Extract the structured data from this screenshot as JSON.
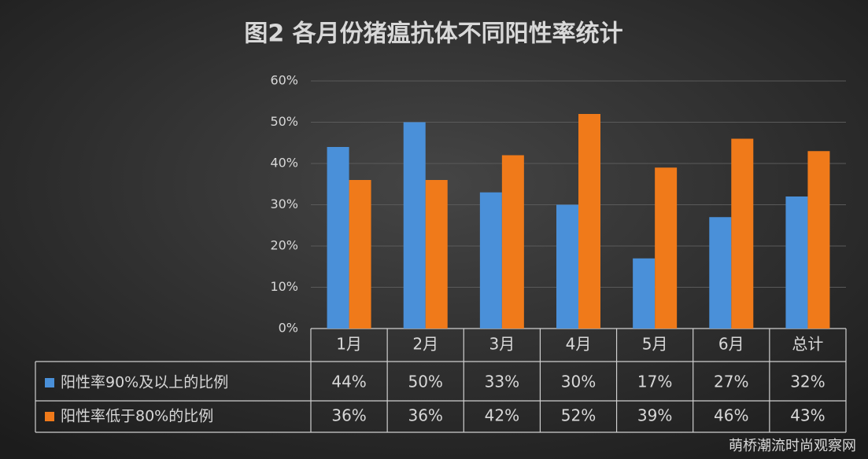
{
  "chart_data": {
    "type": "bar",
    "title": "图2 各月份猪瘟抗体不同阳性率统计",
    "categories": [
      "1月",
      "2月",
      "3月",
      "4月",
      "5月",
      "6月",
      "总计"
    ],
    "series": [
      {
        "name": "阳性率90%及以上的比例",
        "color": "#4a90d9",
        "values": [
          44,
          50,
          33,
          30,
          17,
          27,
          32
        ],
        "value_labels": [
          "44%",
          "50%",
          "33%",
          "30%",
          "17%",
          "27%",
          "32%"
        ]
      },
      {
        "name": "阳性率低于80%的比例",
        "color": "#f07a1a",
        "values": [
          36,
          36,
          42,
          52,
          39,
          46,
          43
        ],
        "value_labels": [
          "36%",
          "36%",
          "42%",
          "52%",
          "39%",
          "46%",
          "43%"
        ]
      }
    ],
    "ylim": [
      0,
      60
    ],
    "yticks": [
      {
        "value": 0,
        "label": "0%"
      },
      {
        "value": 10,
        "label": "10%"
      },
      {
        "value": 20,
        "label": "20%"
      },
      {
        "value": 30,
        "label": "30%"
      },
      {
        "value": 40,
        "label": "40%"
      },
      {
        "value": 50,
        "label": "50%"
      },
      {
        "value": 60,
        "label": "60%"
      }
    ],
    "grid": true,
    "watermark": "萌桥潮流时尚观察网"
  }
}
